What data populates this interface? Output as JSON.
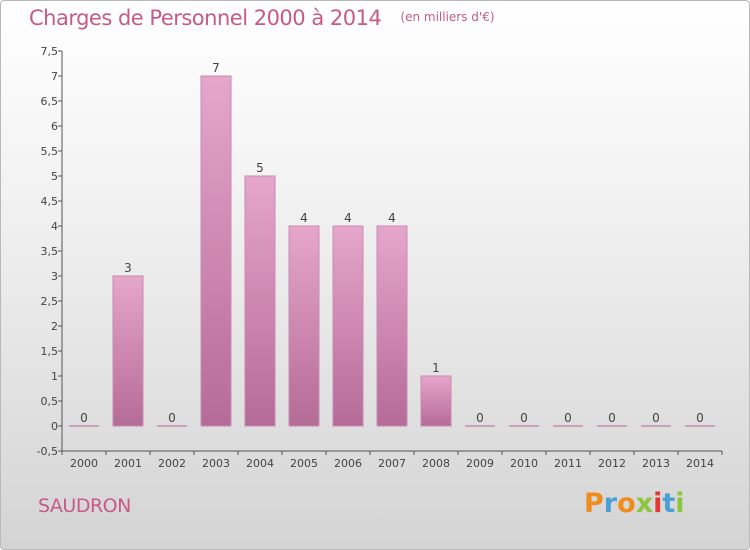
{
  "header": {
    "title": "Charges de Personnel 2000 à 2014",
    "subtitle": "(en milliers d'€)"
  },
  "footer": {
    "commune": "SAUDRON",
    "logo_text": "Proxiti"
  },
  "colors": {
    "title": "#c75a86",
    "bar_top": "#e6a6cb",
    "bar_bottom": "#b56b97",
    "logo": [
      "#f08b1d",
      "#4aa0d5",
      "#f08b1d",
      "#8cc63f",
      "#e6362f",
      "#4aa0d5",
      "#8cc63f"
    ]
  },
  "chart_data": {
    "type": "bar",
    "categories": [
      "2000",
      "2001",
      "2002",
      "2003",
      "2004",
      "2005",
      "2006",
      "2007",
      "2008",
      "2009",
      "2010",
      "2011",
      "2012",
      "2013",
      "2014"
    ],
    "values": [
      0,
      3,
      0,
      7,
      5,
      4,
      4,
      4,
      1,
      0,
      0,
      0,
      0,
      0,
      0
    ],
    "data_labels": [
      "0",
      "3",
      "0",
      "7",
      "5",
      "4",
      "4",
      "4",
      "1",
      "0",
      "0",
      "0",
      "0",
      "0",
      "0"
    ],
    "ylim": [
      -0.5,
      7.5
    ],
    "y_ticks": [
      "-0,5",
      "0",
      "0,5",
      "1",
      "1,5",
      "2",
      "2,5",
      "3",
      "3,5",
      "4",
      "4,5",
      "5",
      "5,5",
      "6",
      "6,5",
      "7",
      "7,5"
    ],
    "y_tick_values": [
      -0.5,
      0,
      0.5,
      1,
      1.5,
      2,
      2.5,
      3,
      3.5,
      4,
      4.5,
      5,
      5.5,
      6,
      6.5,
      7,
      7.5
    ],
    "grid": false,
    "legend": "none"
  }
}
